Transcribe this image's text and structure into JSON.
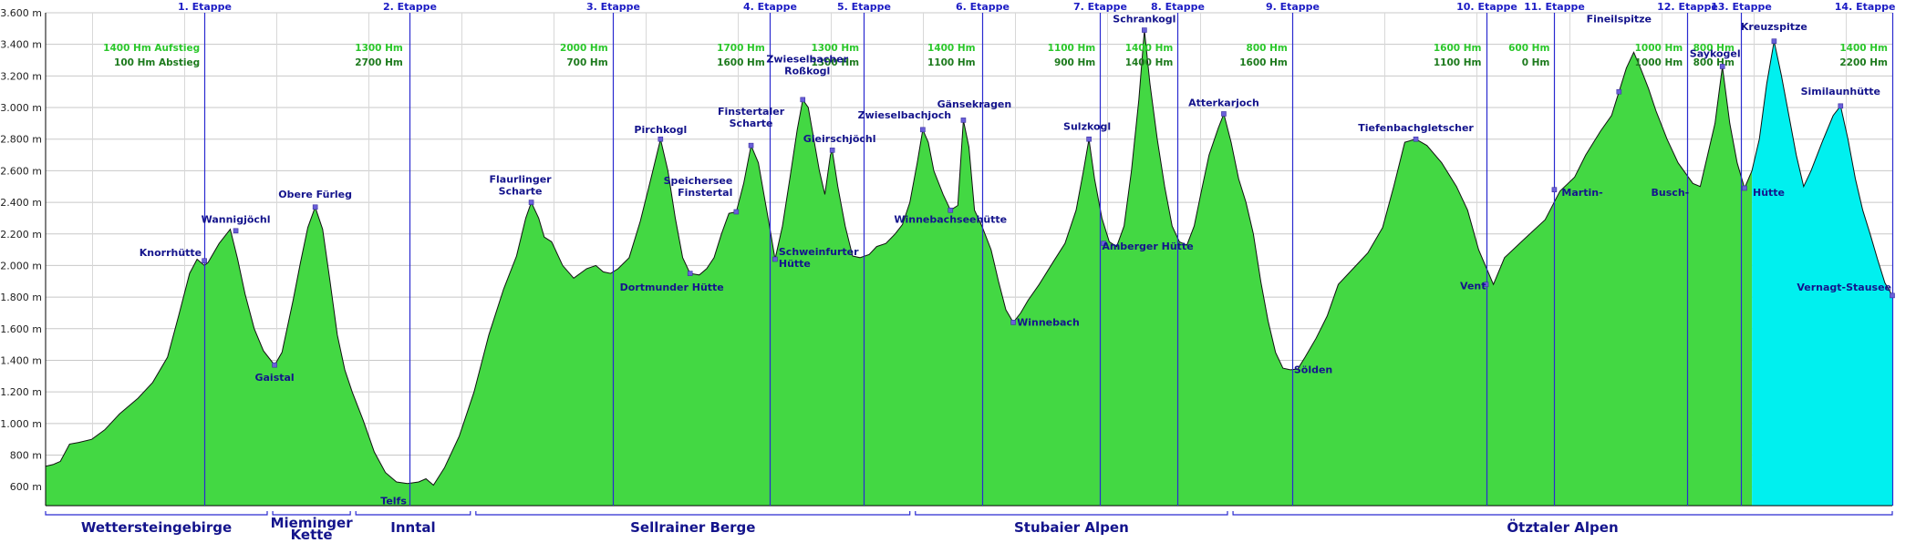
{
  "colors": {
    "fill_main": "#43d843",
    "fill_last": "#00f0ef",
    "outline": "#111111",
    "stage_line": "#2a2ad0",
    "marker": "#6a5fd8",
    "grid": "#c8c8c8"
  },
  "chart_data": {
    "type": "area",
    "title": "",
    "xlabel": "",
    "ylabel": "",
    "y_unit": "m",
    "ylim": [
      480,
      3600
    ],
    "xlim": [
      0,
      1000
    ],
    "grid": true,
    "y_ticks": [
      {
        "value": 600,
        "label": "600 m"
      },
      {
        "value": 800,
        "label": "800 m"
      },
      {
        "value": 1000,
        "label": "1.000 m"
      },
      {
        "value": 1200,
        "label": "1.200 m"
      },
      {
        "value": 1400,
        "label": "1.400 m"
      },
      {
        "value": 1600,
        "label": "1.600 m"
      },
      {
        "value": 1800,
        "label": "1.800 m"
      },
      {
        "value": 2000,
        "label": "2.000 m"
      },
      {
        "value": 2200,
        "label": "2.200 m"
      },
      {
        "value": 2400,
        "label": "2.400 m"
      },
      {
        "value": 2600,
        "label": "2.600 m"
      },
      {
        "value": 2800,
        "label": "2.800 m"
      },
      {
        "value": 3000,
        "label": "3.000 m"
      },
      {
        "value": 3200,
        "label": "3.200 m"
      },
      {
        "value": 3400,
        "label": "3.400 m"
      },
      {
        "value": 3600,
        "label": "3.600 m"
      }
    ],
    "profile": [
      [
        0,
        730
      ],
      [
        4,
        740
      ],
      [
        8,
        760
      ],
      [
        13,
        870
      ],
      [
        18,
        880
      ],
      [
        25,
        900
      ],
      [
        32,
        960
      ],
      [
        40,
        1060
      ],
      [
        50,
        1160
      ],
      [
        58,
        1260
      ],
      [
        66,
        1420
      ],
      [
        72,
        1680
      ],
      [
        78,
        1950
      ],
      [
        82,
        2040
      ],
      [
        86,
        2000
      ],
      [
        88,
        2020
      ],
      [
        94,
        2140
      ],
      [
        100,
        2230
      ],
      [
        104,
        2040
      ],
      [
        108,
        1820
      ],
      [
        113,
        1600
      ],
      [
        118,
        1460
      ],
      [
        124,
        1370
      ],
      [
        128,
        1450
      ],
      [
        134,
        1780
      ],
      [
        138,
        2020
      ],
      [
        142,
        2240
      ],
      [
        146,
        2370
      ],
      [
        150,
        2230
      ],
      [
        154,
        1900
      ],
      [
        158,
        1560
      ],
      [
        162,
        1340
      ],
      [
        166,
        1200
      ],
      [
        172,
        1020
      ],
      [
        178,
        820
      ],
      [
        184,
        690
      ],
      [
        190,
        630
      ],
      [
        196,
        620
      ],
      [
        202,
        630
      ],
      [
        206,
        650
      ],
      [
        210,
        610
      ],
      [
        216,
        720
      ],
      [
        224,
        920
      ],
      [
        232,
        1200
      ],
      [
        240,
        1560
      ],
      [
        248,
        1850
      ],
      [
        255,
        2060
      ],
      [
        260,
        2300
      ],
      [
        263,
        2400
      ],
      [
        267,
        2300
      ],
      [
        270,
        2180
      ],
      [
        274,
        2150
      ],
      [
        280,
        2000
      ],
      [
        286,
        1920
      ],
      [
        293,
        1980
      ],
      [
        298,
        2000
      ],
      [
        302,
        1960
      ],
      [
        306,
        1950
      ],
      [
        310,
        1980
      ],
      [
        316,
        2050
      ],
      [
        322,
        2280
      ],
      [
        328,
        2560
      ],
      [
        333,
        2800
      ],
      [
        337,
        2600
      ],
      [
        341,
        2300
      ],
      [
        345,
        2050
      ],
      [
        349,
        1950
      ],
      [
        354,
        1940
      ],
      [
        358,
        1980
      ],
      [
        362,
        2050
      ],
      [
        366,
        2200
      ],
      [
        370,
        2330
      ],
      [
        374,
        2340
      ],
      [
        378,
        2520
      ],
      [
        382,
        2760
      ],
      [
        386,
        2650
      ],
      [
        389,
        2450
      ],
      [
        392,
        2250
      ],
      [
        395,
        2040
      ],
      [
        399,
        2250
      ],
      [
        403,
        2550
      ],
      [
        407,
        2860
      ],
      [
        410,
        3050
      ],
      [
        413,
        3000
      ],
      [
        416,
        2800
      ],
      [
        419,
        2600
      ],
      [
        422,
        2450
      ],
      [
        425,
        2700
      ],
      [
        426,
        2730
      ],
      [
        429,
        2500
      ],
      [
        433,
        2250
      ],
      [
        437,
        2060
      ],
      [
        441,
        2050
      ],
      [
        446,
        2070
      ],
      [
        450,
        2120
      ],
      [
        455,
        2140
      ],
      [
        460,
        2200
      ],
      [
        464,
        2260
      ],
      [
        468,
        2400
      ],
      [
        472,
        2650
      ],
      [
        475,
        2860
      ],
      [
        478,
        2780
      ],
      [
        481,
        2600
      ],
      [
        486,
        2450
      ],
      [
        490,
        2350
      ],
      [
        494,
        2380
      ],
      [
        497,
        2920
      ],
      [
        500,
        2750
      ],
      [
        503,
        2350
      ],
      [
        507,
        2250
      ],
      [
        512,
        2100
      ],
      [
        516,
        1900
      ],
      [
        520,
        1720
      ],
      [
        524,
        1640
      ],
      [
        528,
        1700
      ],
      [
        532,
        1780
      ],
      [
        538,
        1880
      ],
      [
        546,
        2030
      ],
      [
        552,
        2140
      ],
      [
        558,
        2350
      ],
      [
        562,
        2600
      ],
      [
        565,
        2800
      ],
      [
        568,
        2550
      ],
      [
        572,
        2300
      ],
      [
        576,
        2150
      ],
      [
        580,
        2120
      ],
      [
        584,
        2250
      ],
      [
        588,
        2600
      ],
      [
        592,
        3050
      ],
      [
        595,
        3490
      ],
      [
        598,
        3150
      ],
      [
        602,
        2800
      ],
      [
        606,
        2500
      ],
      [
        610,
        2250
      ],
      [
        614,
        2150
      ],
      [
        618,
        2130
      ],
      [
        622,
        2250
      ],
      [
        626,
        2480
      ],
      [
        630,
        2700
      ],
      [
        635,
        2870
      ],
      [
        638,
        2960
      ],
      [
        642,
        2780
      ],
      [
        646,
        2550
      ],
      [
        650,
        2400
      ],
      [
        654,
        2200
      ],
      [
        658,
        1900
      ],
      [
        662,
        1650
      ],
      [
        666,
        1450
      ],
      [
        670,
        1350
      ],
      [
        674,
        1340
      ],
      [
        678,
        1345
      ],
      [
        682,
        1420
      ],
      [
        688,
        1540
      ],
      [
        694,
        1680
      ],
      [
        700,
        1880
      ],
      [
        708,
        1980
      ],
      [
        716,
        2080
      ],
      [
        724,
        2240
      ],
      [
        730,
        2500
      ],
      [
        736,
        2780
      ],
      [
        742,
        2800
      ],
      [
        748,
        2760
      ],
      [
        756,
        2650
      ],
      [
        764,
        2500
      ],
      [
        770,
        2350
      ],
      [
        776,
        2100
      ],
      [
        780,
        1990
      ],
      [
        784,
        1880
      ],
      [
        790,
        2050
      ],
      [
        800,
        2160
      ],
      [
        812,
        2290
      ],
      [
        820,
        2470
      ],
      [
        828,
        2560
      ],
      [
        834,
        2700
      ],
      [
        842,
        2850
      ],
      [
        848,
        2950
      ],
      [
        852,
        3100
      ],
      [
        856,
        3250
      ],
      [
        860,
        3350
      ],
      [
        864,
        3240
      ],
      [
        868,
        3120
      ],
      [
        872,
        2980
      ],
      [
        878,
        2800
      ],
      [
        884,
        2650
      ],
      [
        892,
        2520
      ],
      [
        896,
        2500
      ],
      [
        900,
        2700
      ],
      [
        904,
        2900
      ],
      [
        908,
        3260
      ],
      [
        912,
        2900
      ],
      [
        916,
        2650
      ],
      [
        920,
        2490
      ],
      [
        924,
        2600
      ],
      [
        928,
        2800
      ],
      [
        932,
        3150
      ],
      [
        936,
        3420
      ],
      [
        940,
        3200
      ],
      [
        944,
        2950
      ],
      [
        948,
        2700
      ],
      [
        952,
        2500
      ],
      [
        956,
        2600
      ],
      [
        962,
        2780
      ],
      [
        968,
        2950
      ],
      [
        972,
        3010
      ],
      [
        976,
        2800
      ],
      [
        980,
        2550
      ],
      [
        984,
        2350
      ],
      [
        988,
        2200
      ],
      [
        992,
        2040
      ],
      [
        996,
        1890
      ],
      [
        1000,
        1810
      ]
    ],
    "last_stage_start": 924,
    "stages": [
      {
        "label": "1. Etappe",
        "x": 86
      },
      {
        "label": "2. Etappe",
        "x": 197
      },
      {
        "label": "3. Etappe",
        "x": 307
      },
      {
        "label": "4. Etappe",
        "x": 392
      },
      {
        "label": "5. Etappe",
        "x": 443
      },
      {
        "label": "6. Etappe",
        "x": 507
      },
      {
        "label": "7. Etappe",
        "x": 571
      },
      {
        "label": "8. Etappe",
        "x": 613
      },
      {
        "label": "9. Etappe",
        "x": 675
      },
      {
        "label": "10. Etappe",
        "x": 780
      },
      {
        "label": "11. Etappe",
        "x": 817
      },
      {
        "label": "12. Etappe",
        "x": 889
      },
      {
        "label": "13. Etappe",
        "x": 918
      },
      {
        "label": "14. Etappe",
        "x": 1000
      }
    ],
    "ascent_descent": [
      {
        "x": 85,
        "up": "1400 Hm Aufstieg",
        "down": "100 Hm Abstieg"
      },
      {
        "x": 195,
        "up": "1300 Hm",
        "down": "2700 Hm"
      },
      {
        "x": 306,
        "up": "2000 Hm",
        "down": "700 Hm"
      },
      {
        "x": 391,
        "up": "1700 Hm",
        "down": "1600 Hm"
      },
      {
        "x": 442,
        "up": "1300 Hm",
        "down": "1300 Hm"
      },
      {
        "x": 505,
        "up": "1400 Hm",
        "down": "1100 Hm"
      },
      {
        "x": 570,
        "up": "1100 Hm",
        "down": "900 Hm"
      },
      {
        "x": 612,
        "up": "1400 Hm",
        "down": "1400 Hm"
      },
      {
        "x": 674,
        "up": "800 Hm",
        "down": "1600 Hm"
      },
      {
        "x": 779,
        "up": "1600 Hm",
        "down": "1100 Hm"
      },
      {
        "x": 816,
        "up": "600 Hm",
        "down": "0 Hm"
      },
      {
        "x": 888,
        "up": "1000 Hm",
        "down": "1000 Hm"
      },
      {
        "x": 916,
        "up": "800 Hm",
        "down": "800 Hm"
      },
      {
        "x": 999,
        "up": "1400 Hm",
        "down": "2200 Hm"
      }
    ],
    "places": [
      {
        "x": 86,
        "y": 2030,
        "lines": [
          "Knorrhütte"
        ],
        "anchor": "end",
        "ty": 2060,
        "dx": -3,
        "marker": true
      },
      {
        "x": 103,
        "y": 2220,
        "lines": [
          "Wannigjöchl"
        ],
        "anchor": "middle",
        "ty": 2270,
        "dx": 0,
        "marker": true
      },
      {
        "x": 124,
        "y": 1370,
        "lines": [
          "Gaistal"
        ],
        "anchor": "middle",
        "ty": 1270,
        "dx": 0,
        "marker": true
      },
      {
        "x": 146,
        "y": 2370,
        "lines": [
          "Obere Fürleg"
        ],
        "anchor": "middle",
        "ty": 2430,
        "dx": 0,
        "marker": true
      },
      {
        "x": 196,
        "y": 620,
        "lines": [
          "Telfs"
        ],
        "anchor": "end",
        "ty": 490,
        "dx": -1,
        "marker": false
      },
      {
        "x": 263,
        "y": 2400,
        "lines": [
          "Flaurlinger",
          "Scharte"
        ],
        "anchor": "middle",
        "ty": 2450,
        "dx": -12,
        "marker": true
      },
      {
        "x": 333,
        "y": 2800,
        "lines": [
          "Pirchkogl"
        ],
        "anchor": "middle",
        "ty": 2840,
        "dx": 0,
        "marker": true
      },
      {
        "x": 349,
        "y": 1950,
        "lines": [
          "Dortmunder Hütte"
        ],
        "anchor": "middle",
        "ty": 1840,
        "dx": -20,
        "marker": true
      },
      {
        "x": 374,
        "y": 2340,
        "lines": [
          "Speichersee",
          "Finstertal"
        ],
        "anchor": "end",
        "ty": 2440,
        "dx": -4,
        "marker": true
      },
      {
        "x": 382,
        "y": 2760,
        "lines": [
          "Finstertaler",
          "Scharte"
        ],
        "anchor": "middle",
        "ty": 2880,
        "dx": 0,
        "marker": true
      },
      {
        "x": 410,
        "y": 3050,
        "lines": [
          "Zwieselbacher",
          "Roßkogl"
        ],
        "anchor": "middle",
        "ty": 3210,
        "dx": 5,
        "marker": true
      },
      {
        "x": 426,
        "y": 2730,
        "lines": [
          "Gleirschjöchl"
        ],
        "anchor": "middle",
        "ty": 2780,
        "dx": 8,
        "marker": true
      },
      {
        "x": 395,
        "y": 2040,
        "lines": [
          "Schweinfurter",
          "Hütte"
        ],
        "anchor": "start",
        "ty": 1990,
        "dx": 4,
        "marker": true
      },
      {
        "x": 475,
        "y": 2860,
        "lines": [
          "Zwieselbachjoch"
        ],
        "anchor": "middle",
        "ty": 2930,
        "dx": -20,
        "marker": true
      },
      {
        "x": 490,
        "y": 2350,
        "lines": [
          "Winnebachseehütte"
        ],
        "anchor": "middle",
        "ty": 2270,
        "dx": 0,
        "marker": true
      },
      {
        "x": 497,
        "y": 2920,
        "lines": [
          "Gänsekragen"
        ],
        "anchor": "middle",
        "ty": 3000,
        "dx": 12,
        "marker": true
      },
      {
        "x": 524,
        "y": 1640,
        "lines": [
          "Winnebach"
        ],
        "anchor": "start",
        "ty": 1620,
        "dx": 4,
        "marker": true
      },
      {
        "x": 565,
        "y": 2800,
        "lines": [
          "Sulzkogl"
        ],
        "anchor": "middle",
        "ty": 2860,
        "dx": -2,
        "marker": true
      },
      {
        "x": 573,
        "y": 2140,
        "lines": [
          "Amberger Hütte"
        ],
        "anchor": "start",
        "ty": 2100,
        "dx": -2,
        "marker": true
      },
      {
        "x": 595,
        "y": 3490,
        "lines": [
          "Schrankogl"
        ],
        "anchor": "middle",
        "ty": 3540,
        "dx": 0,
        "marker": true
      },
      {
        "x": 638,
        "y": 2960,
        "lines": [
          "Atterkarjoch"
        ],
        "anchor": "middle",
        "ty": 3010,
        "dx": 0,
        "marker": true
      },
      {
        "x": 674,
        "y": 1340,
        "lines": [
          "Sölden"
        ],
        "anchor": "start",
        "ty": 1320,
        "dx": 4,
        "marker": false
      },
      {
        "x": 742,
        "y": 2800,
        "lines": [
          "Tiefenbachgletscher"
        ],
        "anchor": "middle",
        "ty": 2850,
        "dx": 0,
        "marker": true
      },
      {
        "x": 780,
        "y": 1880,
        "lines": [
          "Vent"
        ],
        "anchor": "end",
        "ty": 1850,
        "dx": 0,
        "marker": true
      },
      {
        "x": 817,
        "y": 2480,
        "lines": [
          "Martin-"
        ],
        "anchor": "start",
        "ty": 2440,
        "dx": 8,
        "marker": true
      },
      {
        "x": 852,
        "y": 3100,
        "lines": [
          "Fineilspitze"
        ],
        "anchor": "middle",
        "ty": 3540,
        "dx": 0,
        "marker": true
      },
      {
        "x": 889,
        "y": 2490,
        "lines": [
          "Busch-"
        ],
        "anchor": "end",
        "ty": 2440,
        "dx": 2,
        "marker": false
      },
      {
        "x": 908,
        "y": 3260,
        "lines": [
          "Saykogel"
        ],
        "anchor": "middle",
        "ty": 3320,
        "dx": -8,
        "marker": true
      },
      {
        "x": 936,
        "y": 3420,
        "lines": [
          "Kreuzspitze"
        ],
        "anchor": "middle",
        "ty": 3490,
        "dx": 0,
        "marker": true
      },
      {
        "x": 920,
        "y": 2490,
        "lines": [
          "Hütte"
        ],
        "anchor": "start",
        "ty": 2440,
        "dx": 9,
        "marker": true
      },
      {
        "x": 972,
        "y": 3010,
        "lines": [
          "Similaunhütte"
        ],
        "anchor": "middle",
        "ty": 3080,
        "dx": 0,
        "marker": true
      },
      {
        "x": 1000,
        "y": 1810,
        "lines": [
          "Vernagt-Stausee"
        ],
        "anchor": "end",
        "ty": 1840,
        "dx": -1,
        "marker": true
      }
    ],
    "regions": [
      {
        "lines": [
          "Wettersteingebirge"
        ],
        "x0": 0,
        "x1": 120
      },
      {
        "lines": [
          "Mieminger",
          "Kette"
        ],
        "x0": 123,
        "x1": 165
      },
      {
        "lines": [
          "Inntal"
        ],
        "x0": 168,
        "x1": 230
      },
      {
        "lines": [
          "Sellrainer Berge"
        ],
        "x0": 233,
        "x1": 468
      },
      {
        "lines": [
          "Stubaier Alpen"
        ],
        "x0": 471,
        "x1": 640
      },
      {
        "lines": [
          "Ötztaler Alpen"
        ],
        "x0": 643,
        "x1": 1000
      }
    ]
  }
}
